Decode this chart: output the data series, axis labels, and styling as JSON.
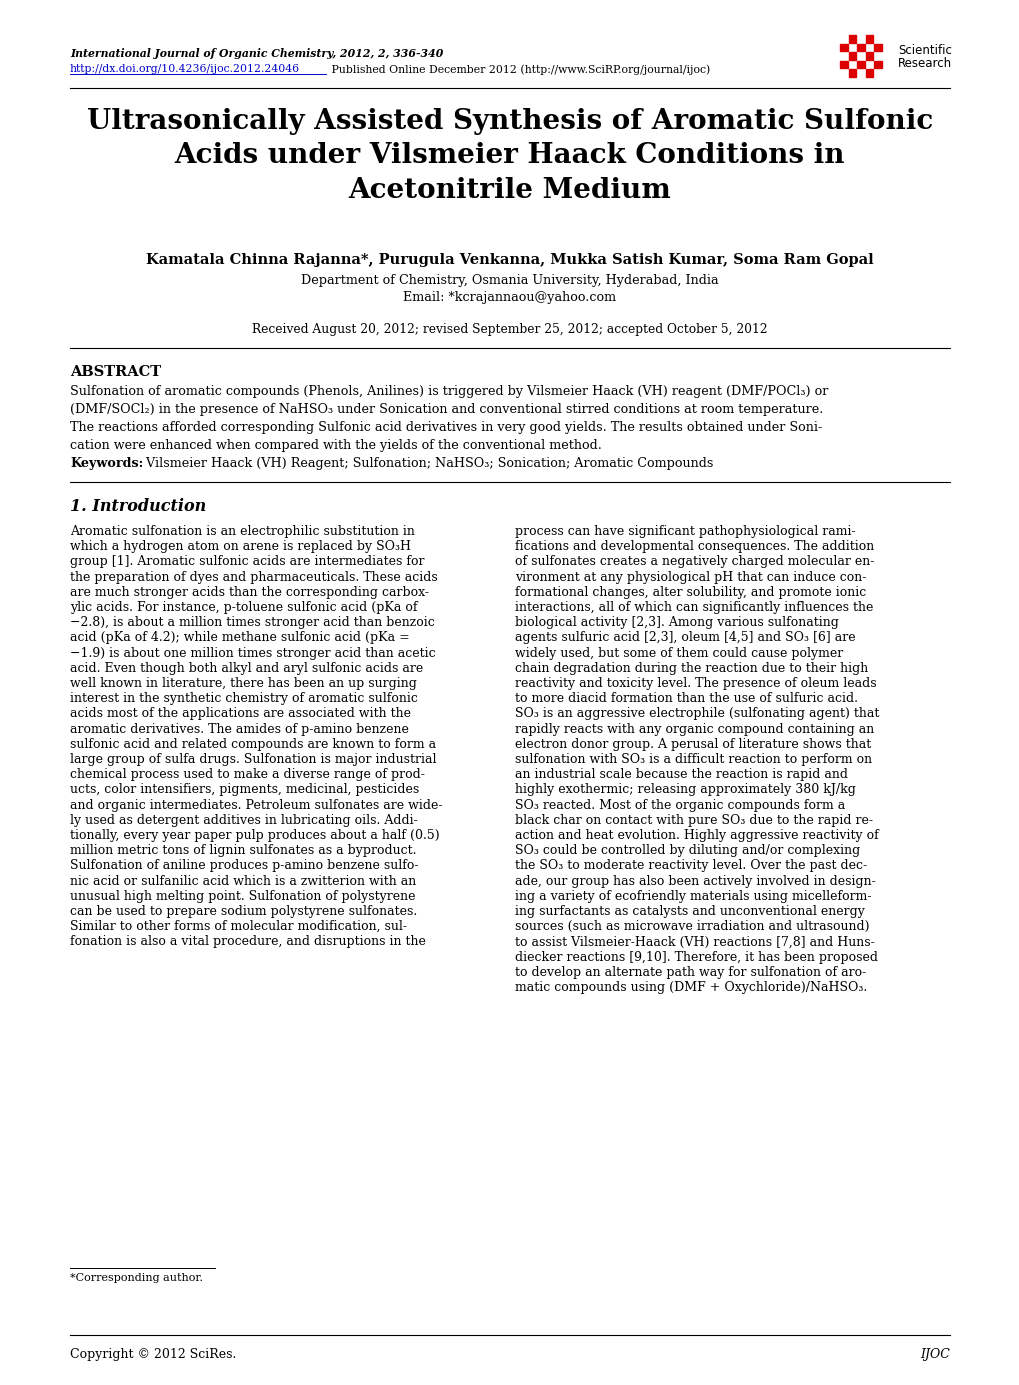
{
  "bg_color": "#ffffff",
  "page_width": 10.2,
  "page_height": 13.85,
  "journal_line1": "International Journal of Organic Chemistry, 2012, 2, 336-340",
  "journal_line2_pre": "http://dx.doi.org/10.4236/ijoc.2012.24046",
  "journal_line2_post": " Published Online December 2012 (http://www.SciRP.org/journal/ijoc)",
  "title": "Ultrasonically Assisted Synthesis of Aromatic Sulfonic\nAcids under Vilsmeier Haack Conditions in\nAcetonitrile Medium",
  "authors": "Kamatala Chinna Rajanna*, Purugula Venkanna, Mukka Satish Kumar, Soma Ram Gopal",
  "affiliation": "Department of Chemistry, Osmania University, Hyderabad, India",
  "email": "Email: *kcrajannaou@yahoo.com",
  "received": "Received August 20, 2012; revised September 25, 2012; accepted October 5, 2012",
  "abstract_title": "ABSTRACT",
  "keywords_bold": "Keywords:",
  "keywords_text": " Vilsmeier Haack (VH) Reagent; Sulfonation; NaHSO₃; Sonication; Aromatic Compounds",
  "section1_title": "1. Introduction",
  "col1_text": "Aromatic sulfonation is an electrophilic substitution in\nwhich a hydrogen atom on arene is replaced by SO₃H\ngroup [1]. Aromatic sulfonic acids are intermediates for\nthe preparation of dyes and pharmaceuticals. These acids\nare much stronger acids than the corresponding carbox-\nylic acids. For instance, p-toluene sulfonic acid (pKa of\n−2.8), is about a million times stronger acid than benzoic\nacid (pKa of 4.2); while methane sulfonic acid (pKa =\n−1.9) is about one million times stronger acid than acetic\nacid. Even though both alkyl and aryl sulfonic acids are\nwell known in literature, there has been an up surging\ninterest in the synthetic chemistry of aromatic sulfonic\nacids most of the applications are associated with the\naromatic derivatives. The amides of p-amino benzene\nsulfonic acid and related compounds are known to form a\nlarge group of sulfa drugs. Sulfonation is major industrial\nchemical process used to make a diverse range of prod-\nucts, color intensifiers, pigments, medicinal, pesticides\nand organic intermediates. Petroleum sulfonates are wide-\nly used as detergent additives in lubricating oils. Addi-\ntionally, every year paper pulp produces about a half (0.5)\nmillion metric tons of lignin sulfonates as a byproduct.\nSulfonation of aniline produces p-amino benzene sulfo-\nnic acid or sulfanilic acid which is a zwitterion with an\nunusual high melting point. Sulfonation of polystyrene\ncan be used to prepare sodium polystyrene sulfonates.\nSimilar to other forms of molecular modification, sul-\nfonation is also a vital procedure, and disruptions in the",
  "col2_text": "process can have significant pathophysiological rami-\nfications and developmental consequences. The addition\nof sulfonates creates a negatively charged molecular en-\nvironment at any physiological pH that can induce con-\nformational changes, alter solubility, and promote ionic\ninteractions, all of which can significantly influences the\nbiological activity [2,3]. Among various sulfonating\nagents sulfuric acid [2,3], oleum [4,5] and SO₃ [6] are\nwidely used, but some of them could cause polymer\nchain degradation during the reaction due to their high\nreactivity and toxicity level. The presence of oleum leads\nto more diacid formation than the use of sulfuric acid.\nSO₃ is an aggressive electrophile (sulfonating agent) that\nrapidly reacts with any organic compound containing an\nelectron donor group. A perusal of literature shows that\nsulfonation with SO₃ is a difficult reaction to perform on\nan industrial scale because the reaction is rapid and\nhighly exothermic; releasing approximately 380 kJ/kg\nSO₃ reacted. Most of the organic compounds form a\nblack char on contact with pure SO₃ due to the rapid re-\naction and heat evolution. Highly aggressive reactivity of\nSO₃ could be controlled by diluting and/or complexing\nthe SO₃ to moderate reactivity level. Over the past dec-\nade, our group has also been actively involved in design-\ning a variety of ecofriendly materials using micelleform-\ning surfactants as catalysts and unconventional energy\nsources (such as microwave irradiation and ultrasound)\nto assist Vilsmeier-Haack (VH) reactions [7,8] and Huns-\ndiecker reactions [9,10]. Therefore, it has been proposed\nto develop an alternate path way for sulfonation of aro-\nmatic compounds using (DMF + Oxychloride)/NaHSO₃.",
  "footnote": "*Corresponding author.",
  "footer_left": "Copyright © 2012 SciRes.",
  "footer_right": "IJOC"
}
